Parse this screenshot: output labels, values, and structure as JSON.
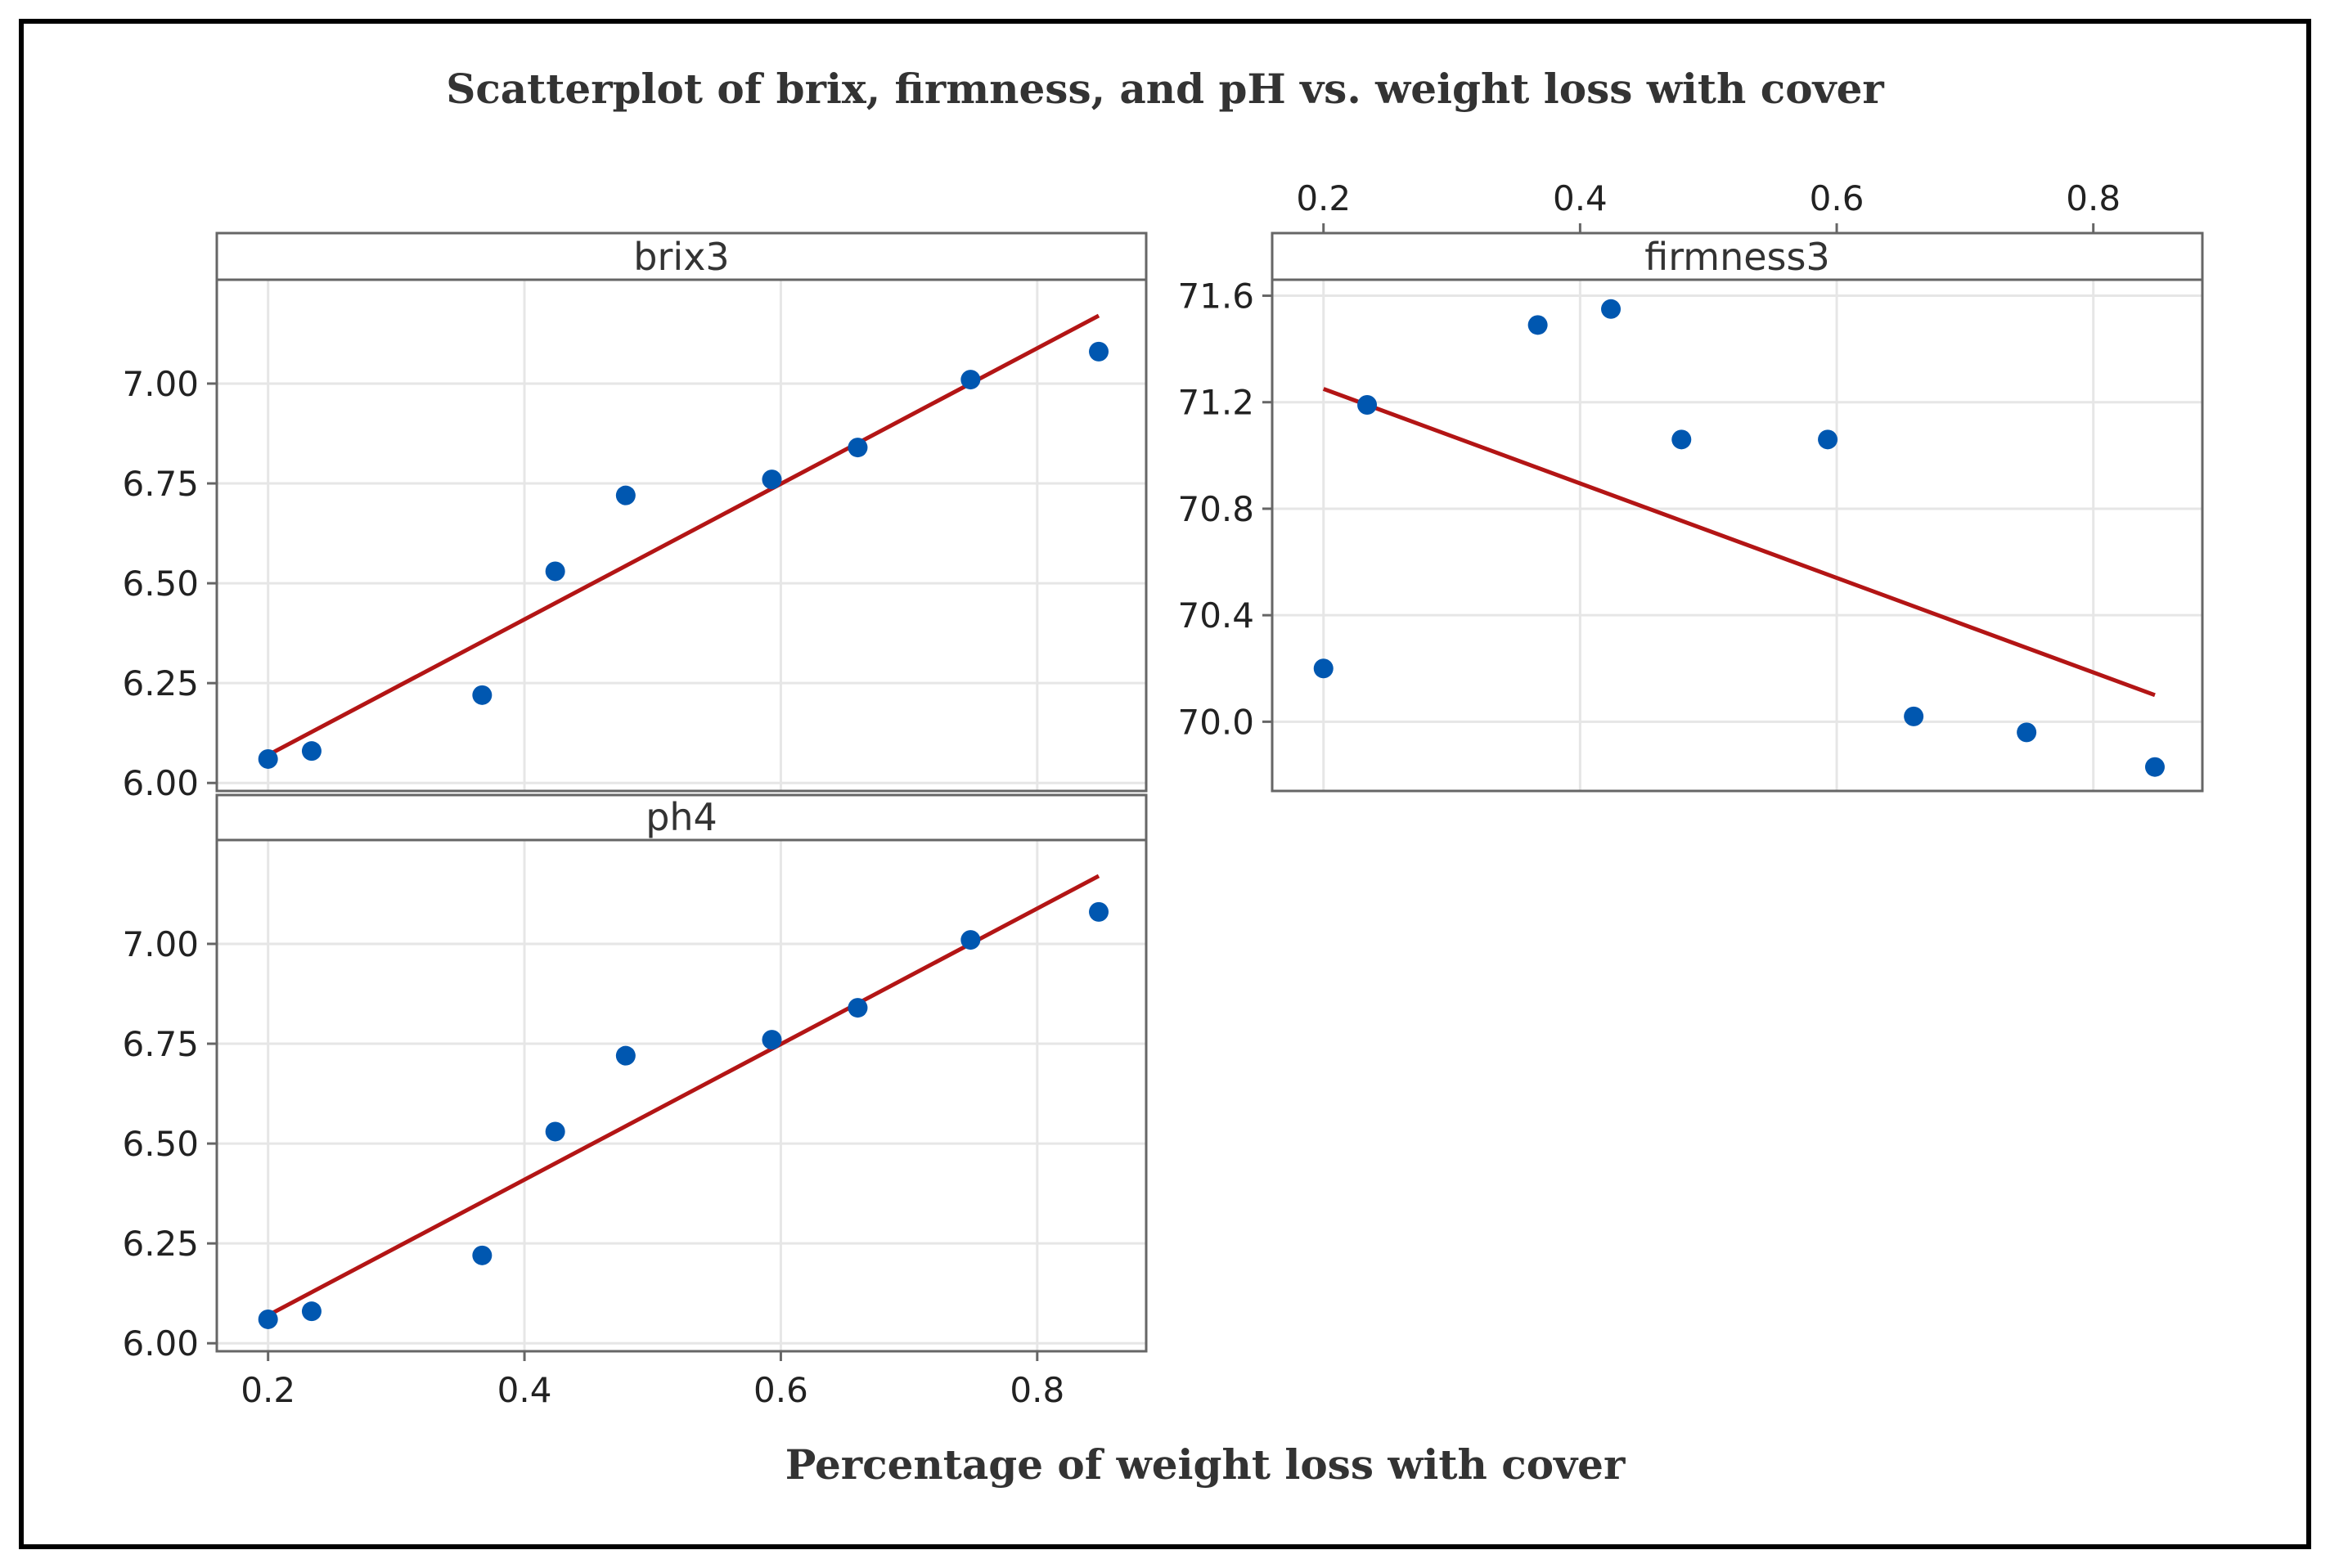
{
  "chart_data": {
    "type": "scatter",
    "title": "Scatterplot of brix, firmness, and pH vs. weight loss with cover",
    "xlabel": "Percentage of weight loss with cover",
    "colors": {
      "point": "#0057b0",
      "fit_line": "#b31515",
      "grid": "#e6e6e6",
      "panel_border": "#666666",
      "header_bg": "#ffffff"
    },
    "x_ticks": [
      "0.2",
      "0.4",
      "0.6",
      "0.8"
    ],
    "xlim": [
      0.16,
      0.885
    ],
    "panels": [
      {
        "name": "brix3",
        "ylim": [
          5.98,
          7.26
        ],
        "y_ticks": [
          "6.00",
          "6.25",
          "6.50",
          "6.75",
          "7.00"
        ],
        "x": [
          0.2,
          0.234,
          0.367,
          0.424,
          0.479,
          0.593,
          0.66,
          0.748,
          0.848
        ],
        "y": [
          6.06,
          6.08,
          6.22,
          6.53,
          6.72,
          6.76,
          6.84,
          7.01,
          7.08
        ],
        "fit": {
          "x": [
            0.2,
            0.848
          ],
          "y": [
            6.07,
            7.17
          ]
        }
      },
      {
        "name": "ph4",
        "ylim": [
          5.98,
          7.26
        ],
        "y_ticks": [
          "6.00",
          "6.25",
          "6.50",
          "6.75",
          "7.00"
        ],
        "x": [
          0.2,
          0.234,
          0.367,
          0.424,
          0.479,
          0.593,
          0.66,
          0.748,
          0.848
        ],
        "y": [
          6.06,
          6.08,
          6.22,
          6.53,
          6.72,
          6.76,
          6.84,
          7.01,
          7.08
        ],
        "fit": {
          "x": [
            0.2,
            0.848
          ],
          "y": [
            6.07,
            7.17
          ]
        }
      },
      {
        "name": "firmness3",
        "ylim": [
          69.74,
          71.66
        ],
        "y_ticks": [
          "70.0",
          "70.4",
          "70.8",
          "71.2",
          "71.6"
        ],
        "x": [
          0.2,
          0.234,
          0.367,
          0.424,
          0.479,
          0.593,
          0.66,
          0.748,
          0.848
        ],
        "y": [
          70.2,
          71.19,
          71.49,
          71.55,
          71.06,
          71.06,
          70.02,
          69.96,
          69.83
        ],
        "fit": {
          "x": [
            0.2,
            0.848
          ],
          "y": [
            71.25,
            70.1
          ]
        }
      }
    ]
  }
}
